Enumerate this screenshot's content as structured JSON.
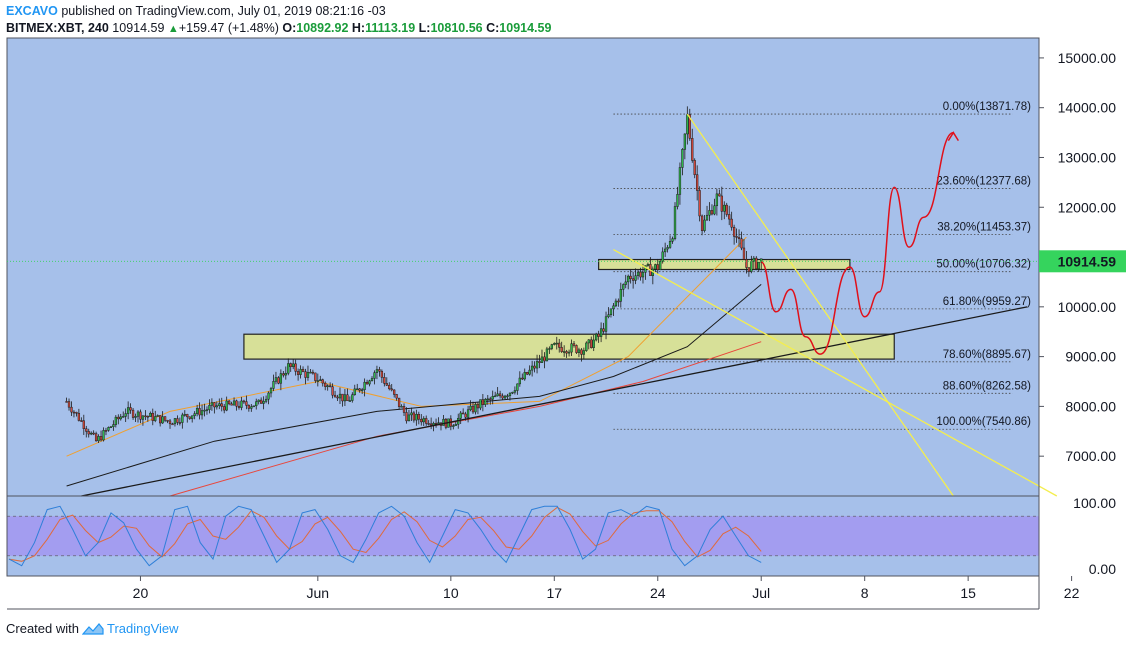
{
  "header": {
    "author": "EXCAVO",
    "published_text": "published on TradingView.com, July 01, 2019 08:21:16 -03",
    "symbol": "BITMEX:XBT, 240",
    "last": "10914.59",
    "change": "+159.47 (+1.48%)",
    "o_label": "O:",
    "o_value": "10892.92",
    "h_label": "H:",
    "h_value": "11113.19",
    "l_label": "L:",
    "l_value": "10810.56",
    "c_label": "C:",
    "c_value": "10914.59"
  },
  "footer": {
    "created_with": "Created with",
    "brand": "TradingView"
  },
  "colors": {
    "background": "#a6c0ea",
    "up": "#2eb84b",
    "down": "#d84a3e",
    "zone_fill": "#dfe58a",
    "trend_yellow": "#f4ee4e",
    "projection_red": "#e0101a",
    "ma_orange": "#f0a030",
    "ma_black": "#1a1a1a",
    "ma_red": "#e8473c",
    "price_label": "#35d45d",
    "rsi_band": "#a39df0"
  },
  "chart_data": {
    "type": "candlestick",
    "symbol": "BITMEX:XBT",
    "interval": "240",
    "ylim": [
      6200,
      15400
    ],
    "y_ticks": [
      7000,
      8000,
      9000,
      10000,
      11000,
      12000,
      13000,
      14000,
      15000
    ],
    "y_tick_labels": [
      "7000.00",
      "8000.00",
      "9000.00",
      "10000.00",
      "11000.00",
      "12000.00",
      "13000.00",
      "14000.00",
      "15000.00"
    ],
    "x_tick_labels": [
      "20",
      "Jun",
      "10",
      "17",
      "24",
      "Jul",
      "8",
      "15",
      "22"
    ],
    "last_price": 10914.59,
    "last_price_label": "10914.59",
    "candle_anchors": [
      {
        "date": "2019-05-15",
        "close": 8100
      },
      {
        "date": "2019-05-17",
        "close": 7300
      },
      {
        "date": "2019-05-19",
        "close": 7900
      },
      {
        "date": "2019-05-22",
        "close": 7700
      },
      {
        "date": "2019-05-25",
        "close": 8000
      },
      {
        "date": "2019-05-28",
        "close": 8050
      },
      {
        "date": "2019-05-30",
        "close": 8800
      },
      {
        "date": "2019-06-01",
        "close": 8550
      },
      {
        "date": "2019-06-03",
        "close": 8100
      },
      {
        "date": "2019-06-05",
        "close": 8750
      },
      {
        "date": "2019-06-07",
        "close": 7800
      },
      {
        "date": "2019-06-09",
        "close": 7700
      },
      {
        "date": "2019-06-10",
        "close": 7650
      },
      {
        "date": "2019-06-12",
        "close": 8050
      },
      {
        "date": "2019-06-14",
        "close": 8300
      },
      {
        "date": "2019-06-16",
        "close": 8900
      },
      {
        "date": "2019-06-17",
        "close": 9200
      },
      {
        "date": "2019-06-19",
        "close": 9150
      },
      {
        "date": "2019-06-20",
        "close": 9400
      },
      {
        "date": "2019-06-22",
        "close": 10600
      },
      {
        "date": "2019-06-24",
        "close": 10800
      },
      {
        "date": "2019-06-25",
        "close": 11500
      },
      {
        "date": "2019-06-26",
        "close": 13800
      },
      {
        "date": "2019-06-27",
        "close": 11600
      },
      {
        "date": "2019-06-28",
        "close": 12200
      },
      {
        "date": "2019-06-29",
        "close": 11700
      },
      {
        "date": "2019-06-30",
        "close": 10800
      },
      {
        "date": "2019-07-01",
        "close": 10914.59
      }
    ],
    "moving_averages": [
      {
        "color": "#f0a030",
        "points": [
          [
            "2019-05-15",
            7000
          ],
          [
            "2019-05-22",
            7900
          ],
          [
            "2019-06-01",
            8500
          ],
          [
            "2019-06-08",
            8000
          ],
          [
            "2019-06-16",
            8100
          ],
          [
            "2019-06-22",
            9000
          ],
          [
            "2019-06-27",
            10500
          ],
          [
            "2019-06-30",
            11400
          ]
        ]
      },
      {
        "color": "#1a1a1a",
        "points": [
          [
            "2019-05-15",
            6400
          ],
          [
            "2019-05-25",
            7300
          ],
          [
            "2019-06-05",
            7900
          ],
          [
            "2019-06-16",
            8200
          ],
          [
            "2019-06-21",
            8600
          ],
          [
            "2019-06-26",
            9200
          ],
          [
            "2019-07-01",
            10450
          ]
        ]
      },
      {
        "color": "#e8473c",
        "points": [
          [
            "2019-05-22",
            6200
          ],
          [
            "2019-06-05",
            7400
          ],
          [
            "2019-06-16",
            8000
          ],
          [
            "2019-06-23",
            8500
          ],
          [
            "2019-07-01",
            9300
          ]
        ]
      }
    ],
    "fibonacci": [
      {
        "label": "0.00%(13871.78)",
        "price": 13871.78
      },
      {
        "label": "23.60%(12377.68)",
        "price": 12377.68
      },
      {
        "label": "38.20%(11453.37)",
        "price": 11453.37
      },
      {
        "label": "50.00%(10706.32)",
        "price": 10706.32
      },
      {
        "label": "61.80%(9959.27)",
        "price": 9959.27
      },
      {
        "label": "78.60%(8895.67)",
        "price": 8895.67
      },
      {
        "label": "88.60%(8262.58)",
        "price": 8262.58
      },
      {
        "label": "100.00%(7540.86)",
        "price": 7540.86
      }
    ],
    "fib_range": [
      "2019-06-21",
      "2019-07-18"
    ],
    "zones": [
      {
        "from": "2019-05-27",
        "to": "2019-07-10",
        "low": 8950,
        "high": 9450
      },
      {
        "from": "2019-06-20",
        "to": "2019-07-07",
        "low": 10750,
        "high": 10950
      }
    ],
    "trendlines": [
      {
        "color": "#1a1a1a",
        "from": [
          "2019-05-16",
          6200
        ],
        "to": [
          "2019-07-19",
          10000
        ]
      },
      {
        "color": "#f4ee4e",
        "from": [
          "2019-06-26",
          13870
        ],
        "to": [
          "2019-07-14",
          6200
        ]
      },
      {
        "color": "#f4ee4e",
        "from": [
          "2019-06-21",
          11150
        ],
        "to": [
          "2019-07-21",
          6200
        ]
      }
    ],
    "projection": [
      [
        "2019-07-01",
        10900
      ],
      [
        "2019-07-02",
        9900
      ],
      [
        "2019-07-03",
        10350
      ],
      [
        "2019-07-04",
        9400
      ],
      [
        "2019-07-05",
        9050
      ],
      [
        "2019-07-07",
        10800
      ],
      [
        "2019-07-08",
        9800
      ],
      [
        "2019-07-09",
        10300
      ],
      [
        "2019-07-10",
        12400
      ],
      [
        "2019-07-11",
        11200
      ],
      [
        "2019-07-12",
        11800
      ],
      [
        "2019-07-14",
        13500
      ]
    ],
    "oscillator": {
      "type": "stochastic_rsi",
      "ylim": [
        0,
        100
      ],
      "band": [
        20,
        80
      ],
      "tick_labels": [
        "100.00",
        "0.00"
      ],
      "k_series": [
        15,
        5,
        40,
        90,
        95,
        60,
        20,
        40,
        85,
        70,
        30,
        5,
        20,
        90,
        95,
        40,
        15,
        80,
        95,
        90,
        50,
        10,
        30,
        85,
        90,
        60,
        20,
        10,
        45,
        85,
        95,
        80,
        40,
        10,
        50,
        90,
        85,
        60,
        30,
        10,
        50,
        90,
        95,
        95,
        60,
        15,
        30,
        85,
        90,
        80,
        95,
        90,
        30,
        5,
        20,
        60,
        80,
        50,
        20,
        10
      ]
    }
  }
}
